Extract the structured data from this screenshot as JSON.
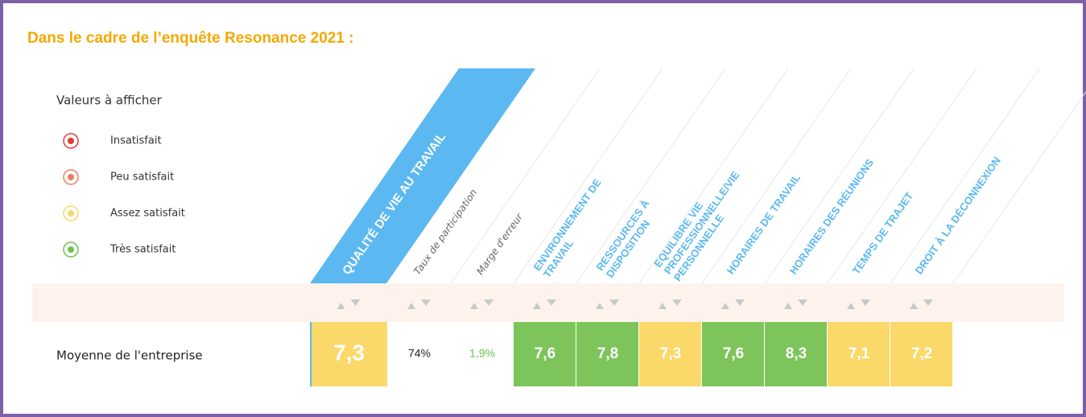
{
  "header": {
    "title": "Dans le cadre de l’enquête Resonance 2021 :"
  },
  "legend": {
    "title": "Valeurs à afficher",
    "items": [
      {
        "label": "Insatisfait",
        "color": "#e53935"
      },
      {
        "label": "Peu satisfait",
        "color": "#ef7b5f"
      },
      {
        "label": "Assez satisfait",
        "color": "#f5d86a"
      },
      {
        "label": "Très satisfait",
        "color": "#6cc04a"
      }
    ]
  },
  "table": {
    "columns": [
      {
        "lines": [
          "QUALITÉ DE VIE AU TRAVAIL"
        ],
        "style": "main"
      },
      {
        "lines": [
          "Taux de participation"
        ],
        "style": "meta"
      },
      {
        "lines": [
          "Marge d'erreur"
        ],
        "style": "meta"
      },
      {
        "lines": [
          "ENVIRONNEMENT DE",
          "TRAVAIL"
        ],
        "style": "theme"
      },
      {
        "lines": [
          "RESSOURCES À",
          "DISPOSITION"
        ],
        "style": "theme"
      },
      {
        "lines": [
          "EQUILIBRE VIE",
          "PROFESSIONNELLE/VIE",
          "PERSONNELLE"
        ],
        "style": "theme"
      },
      {
        "lines": [
          "HORAIRES DE TRAVAIL"
        ],
        "style": "theme"
      },
      {
        "lines": [
          "HORAIRES DES RÉUNIONS"
        ],
        "style": "theme"
      },
      {
        "lines": [
          "TEMPS DE TRAJET"
        ],
        "style": "theme"
      },
      {
        "lines": [
          "DROIT À LA DÉCONNEXION"
        ],
        "style": "theme"
      }
    ],
    "rows": [
      {
        "label": "Moyenne de l'entreprise",
        "cells": [
          {
            "text": "7,3",
            "color": "#fbd86a"
          },
          {
            "text": "74%",
            "color": "#ffffff"
          },
          {
            "text": "1,9%",
            "color": "#ffffff"
          },
          {
            "text": "7,6",
            "color": "#7dc55a"
          },
          {
            "text": "7,8",
            "color": "#7dc55a"
          },
          {
            "text": "7,3",
            "color": "#fbd86a"
          },
          {
            "text": "7,6",
            "color": "#7dc55a"
          },
          {
            "text": "8,3",
            "color": "#7dc55a"
          },
          {
            "text": "7,1",
            "color": "#fbd86a"
          },
          {
            "text": "7,2",
            "color": "#fbd86a"
          }
        ]
      }
    ]
  }
}
